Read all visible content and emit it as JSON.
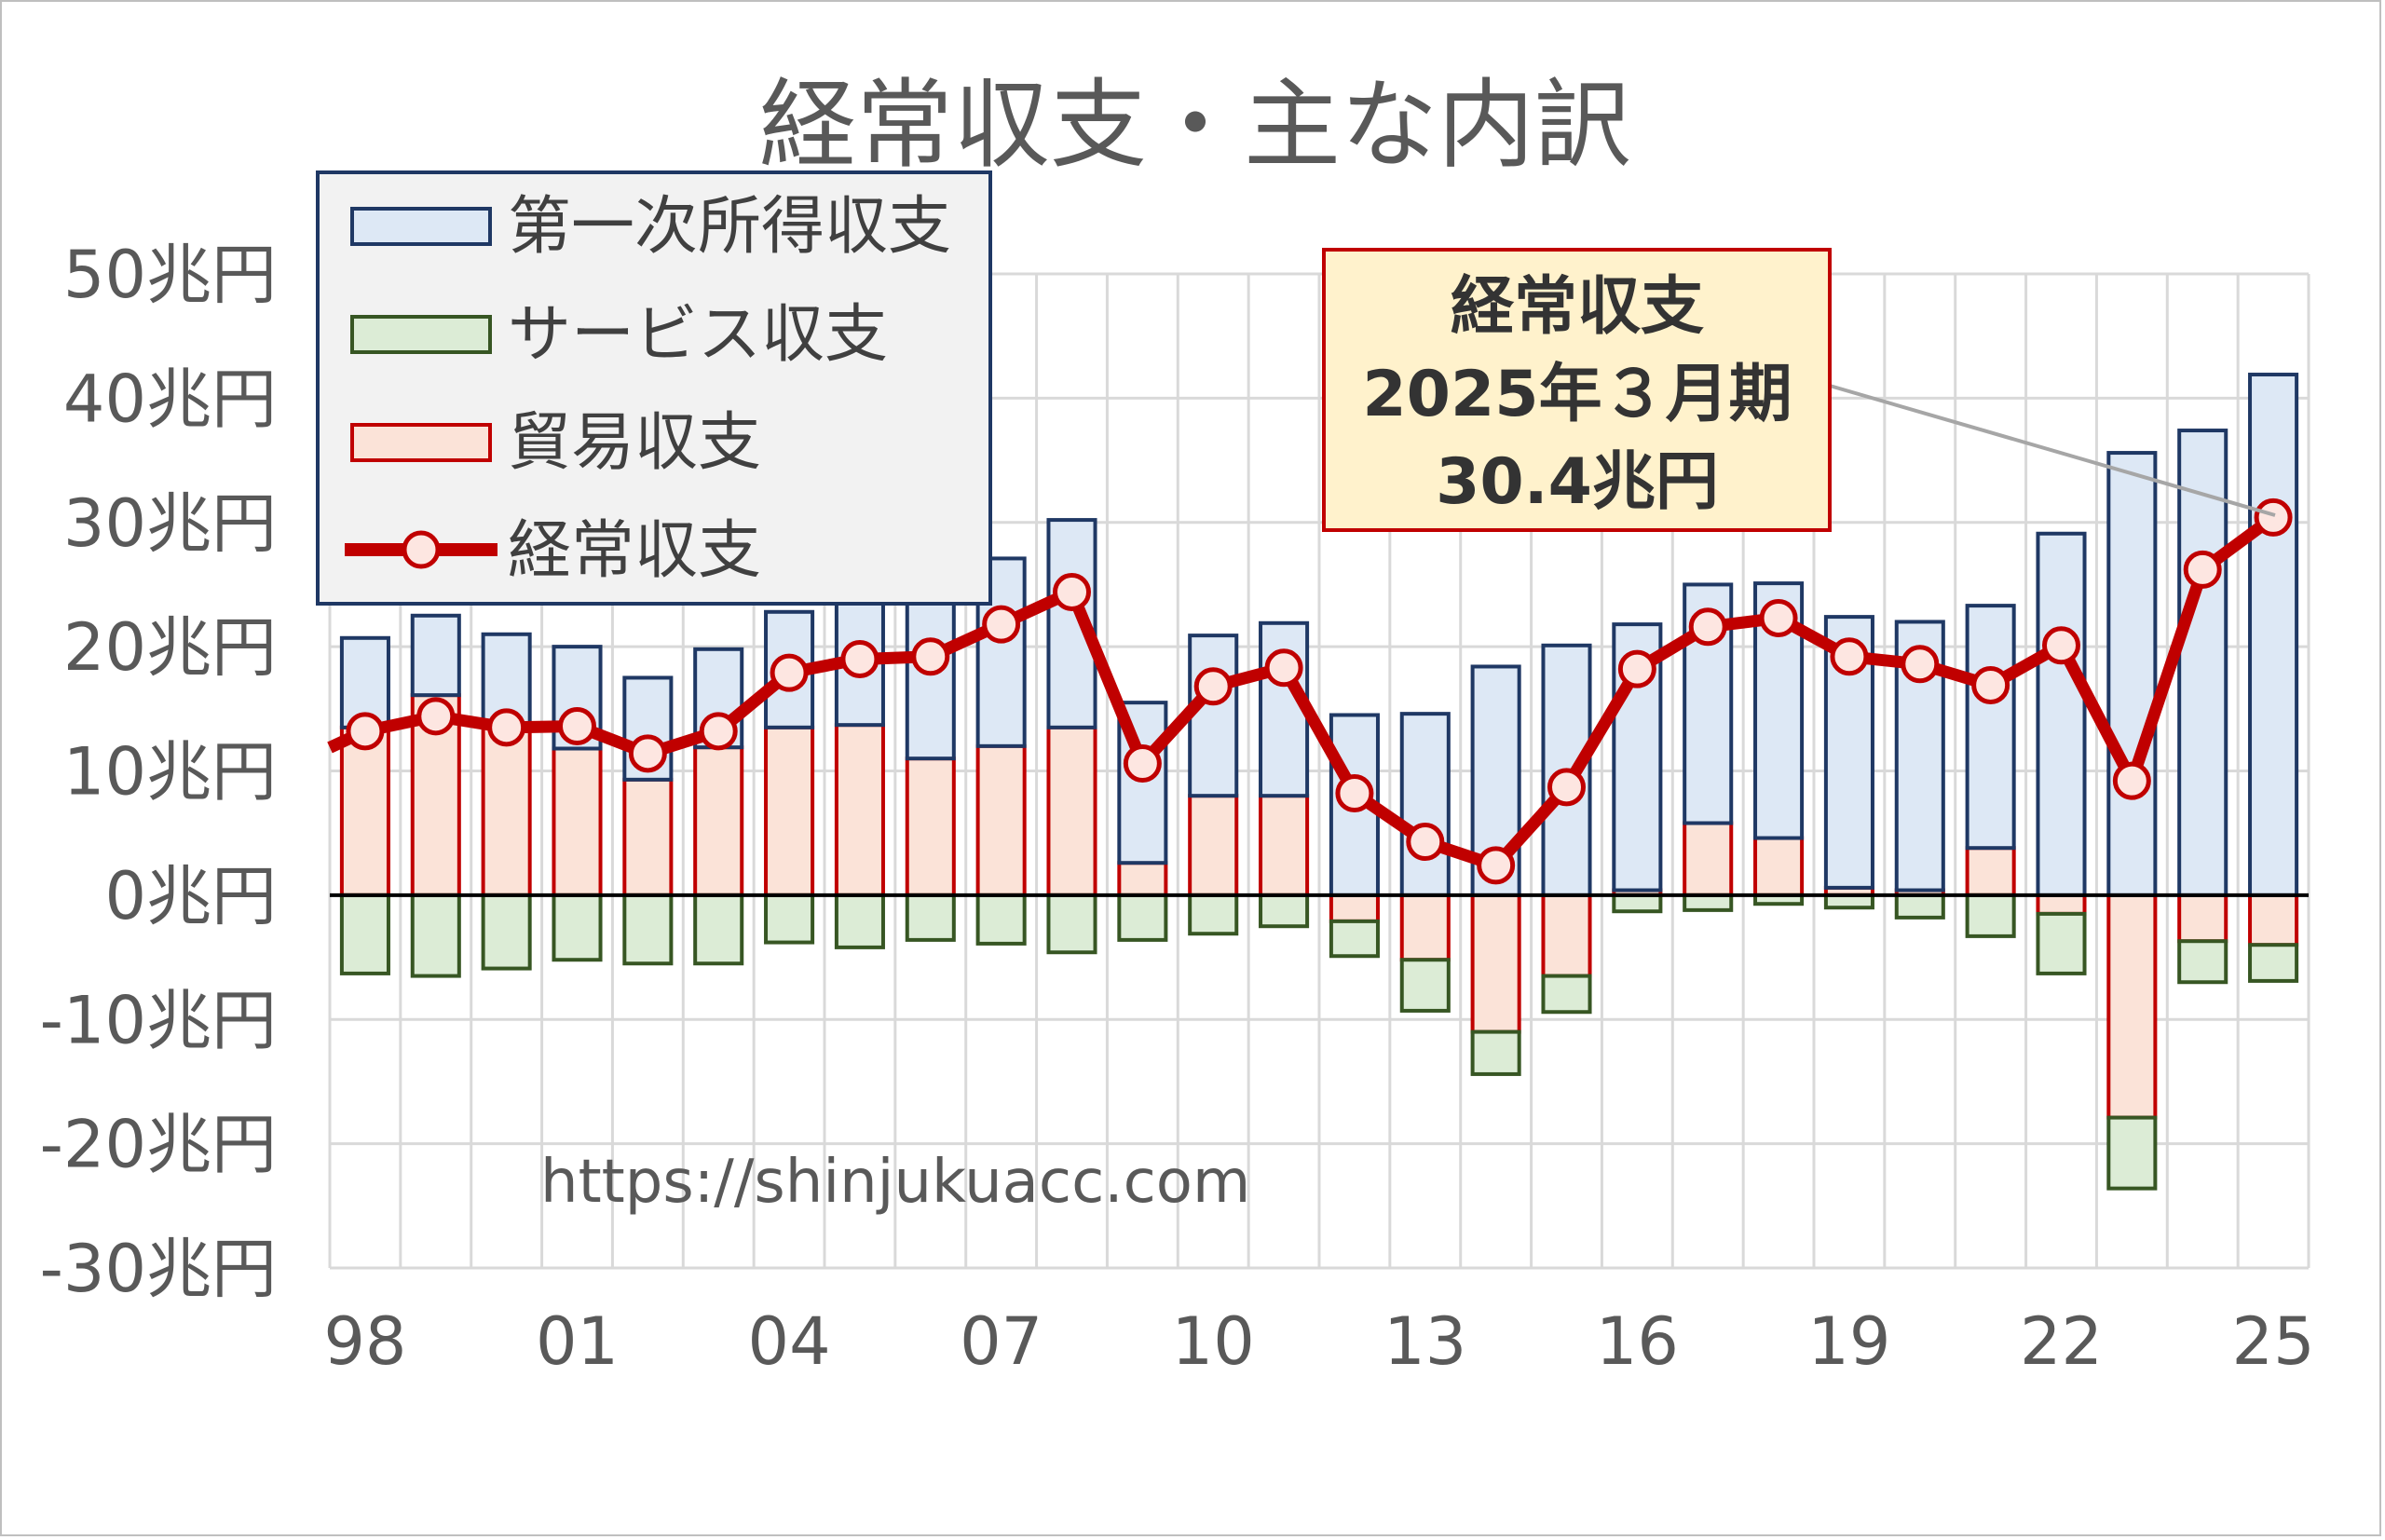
{
  "chart_data": {
    "type": "bar",
    "title": "経常収支・主な内訳",
    "x_tick_labels": [
      "98",
      "01",
      "04",
      "07",
      "10",
      "13",
      "16",
      "19",
      "22",
      "25"
    ],
    "y_tick_labels": [
      "50兆円",
      "40兆円",
      "30兆円",
      "20兆円",
      "10兆円",
      "0兆円",
      "-10兆円",
      "-20兆円",
      "-30兆円"
    ],
    "ylim": [
      -30,
      50
    ],
    "grid": true,
    "legend_position": "top-left",
    "legend": [
      "第一次所得収支",
      "サービス収支",
      "貿易収支",
      "経常収支"
    ],
    "categories": [
      "1998",
      "1999",
      "2000",
      "2001",
      "2002",
      "2003",
      "2004",
      "2005",
      "2006",
      "2007",
      "2008",
      "2009",
      "2010",
      "2011",
      "2012",
      "2013",
      "2014",
      "2015",
      "2016",
      "2017",
      "2018",
      "2019",
      "2020",
      "2021",
      "2022",
      "2023",
      "2024",
      "2025"
    ],
    "series": [
      {
        "name": "第一次所得収支",
        "kind": "bar",
        "values": [
          7.2,
          6.4,
          7.4,
          8.2,
          8.2,
          7.9,
          9.3,
          10.7,
          13.1,
          15.1,
          16.7,
          12.9,
          12.9,
          13.9,
          14.5,
          14.6,
          18.4,
          20.1,
          21.4,
          19.2,
          20.5,
          21.8,
          21.6,
          19.5,
          29.1,
          35.6,
          37.4,
          41.9
        ]
      },
      {
        "name": "サービス収支",
        "kind": "bar",
        "values": [
          -6.3,
          -6.5,
          -5.9,
          -5.2,
          -5.5,
          -5.5,
          -3.8,
          -4.2,
          -3.6,
          -3.9,
          -4.6,
          -3.6,
          -3.1,
          -2.5,
          -2.8,
          -4.1,
          -3.4,
          -2.9,
          -1.3,
          -1.2,
          -0.7,
          -1.0,
          -1.8,
          -3.3,
          -4.8,
          -5.7,
          -3.3,
          -2.9
        ]
      },
      {
        "name": "貿易収支",
        "kind": "bar",
        "values": [
          13.5,
          16.1,
          13.6,
          11.8,
          9.3,
          11.9,
          13.5,
          13.7,
          11.0,
          12.0,
          13.5,
          2.6,
          8.0,
          8.0,
          -2.1,
          -5.2,
          -11.0,
          -6.5,
          0.4,
          5.8,
          4.6,
          0.6,
          0.4,
          3.8,
          -1.5,
          -17.9,
          -3.7,
          -4.0
        ]
      },
      {
        "name": "経常収支",
        "kind": "line",
        "values": [
          13.2,
          14.4,
          13.5,
          13.6,
          11.4,
          13.2,
          17.9,
          19.0,
          19.2,
          21.8,
          24.4,
          10.6,
          16.8,
          18.3,
          8.2,
          4.3,
          2.4,
          8.7,
          18.2,
          21.6,
          22.3,
          19.2,
          18.6,
          16.9,
          20.1,
          9.2,
          26.2,
          30.4
        ]
      }
    ],
    "annotation": {
      "lines": [
        "経常収支",
        "2025年３月期",
        "30.4兆円"
      ],
      "target_category": "2025"
    },
    "watermark": "https://shinjukuacc.com"
  },
  "colors": {
    "primary_income_fill": "#dde8f5",
    "primary_income_stroke": "#1f3864",
    "services_fill": "#dcecd6",
    "services_stroke": "#375623",
    "trade_fill": "#fbe3d8",
    "trade_stroke": "#c00000",
    "current_line": "#c00000",
    "marker_fill": "#fde6e1",
    "grid": "#d9d9d9",
    "axis": "#000000",
    "callout_fill": "#fff2cc",
    "callout_stroke": "#c00000"
  }
}
